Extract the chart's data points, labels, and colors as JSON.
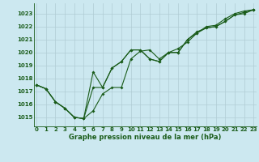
{
  "title": "Graphe pression niveau de la mer (hPa)",
  "bg_color": "#cce8f0",
  "grid_color": "#b0ccd4",
  "line_color": "#1a5c1a",
  "x_ticks": [
    0,
    1,
    2,
    3,
    4,
    5,
    6,
    7,
    8,
    9,
    10,
    11,
    12,
    13,
    14,
    15,
    16,
    17,
    18,
    19,
    20,
    21,
    22,
    23
  ],
  "y_ticks": [
    1015,
    1016,
    1017,
    1018,
    1019,
    1020,
    1021,
    1022,
    1023
  ],
  "ylim": [
    1014.3,
    1023.8
  ],
  "xlim": [
    -0.3,
    23.3
  ],
  "line1": [
    1017.5,
    1017.2,
    1016.2,
    1015.7,
    1015.0,
    1014.9,
    1015.5,
    1016.8,
    1017.3,
    1017.3,
    1019.5,
    1020.1,
    1020.2,
    1019.5,
    1020.0,
    1020.3,
    1020.8,
    1021.5,
    1022.0,
    1022.1,
    1022.6,
    1023.0,
    1023.2,
    1023.3
  ],
  "line2": [
    1017.5,
    1017.2,
    1016.2,
    1015.7,
    1015.0,
    1014.9,
    1017.3,
    1017.3,
    1018.8,
    1019.3,
    1020.2,
    1020.2,
    1019.5,
    1019.3,
    1020.0,
    1020.0,
    1021.0,
    1021.5,
    1021.9,
    1022.0,
    1022.4,
    1022.9,
    1023.1,
    1023.3
  ],
  "line3": [
    1017.5,
    1017.2,
    1016.2,
    1015.7,
    1015.0,
    1014.9,
    1018.5,
    1017.3,
    1018.8,
    1019.3,
    1020.2,
    1020.2,
    1019.5,
    1019.3,
    1020.0,
    1020.0,
    1021.0,
    1021.6,
    1021.9,
    1022.0,
    1022.4,
    1022.9,
    1023.0,
    1023.3
  ],
  "marker_size": 2.0,
  "line_width": 0.8,
  "tick_fontsize": 5.0,
  "label_fontsize": 6.0
}
